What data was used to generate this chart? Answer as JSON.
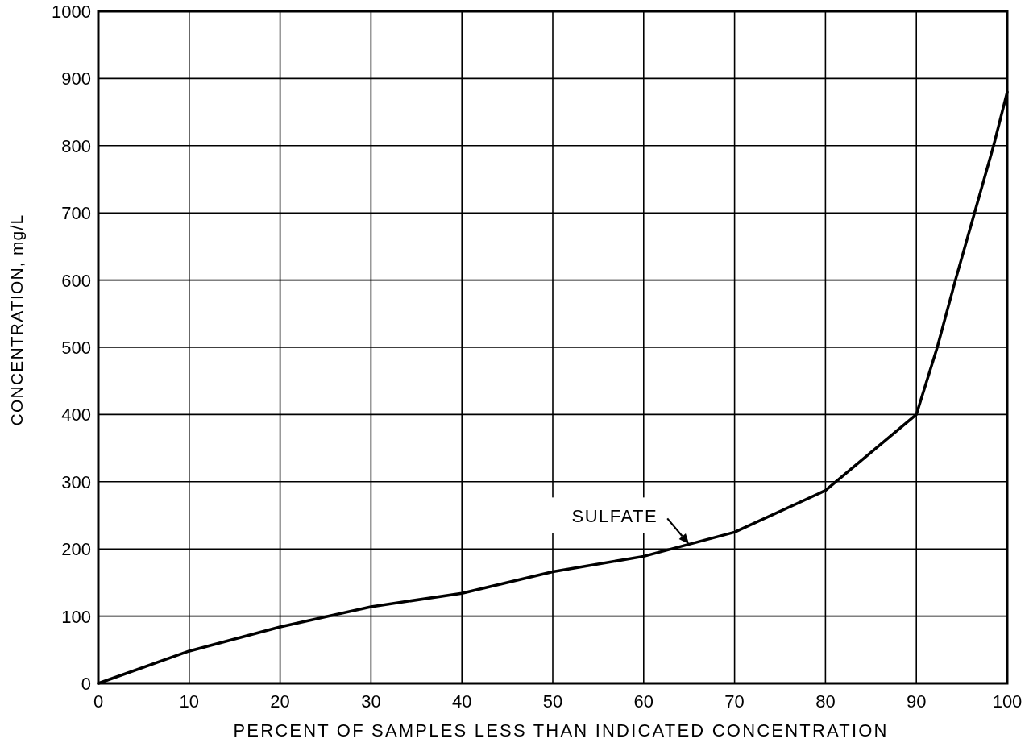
{
  "chart_data": {
    "type": "line",
    "xlabel": "PERCENT OF SAMPLES LESS THAN INDICATED CONCENTRATION",
    "ylabel": "CONCENTRATION, mg/L",
    "x": [
      0,
      10,
      20,
      30,
      40,
      50,
      60,
      70,
      80,
      90,
      92.3,
      94.3,
      96.4,
      98.5,
      100
    ],
    "series": [
      {
        "color": "#000000",
        "values": [
          0,
          48,
          84,
          114,
          134,
          166,
          189,
          225,
          287,
          400,
          500,
          600,
          700,
          800,
          880
        ]
      }
    ],
    "xlim": [
      0,
      100
    ],
    "xticks": [
      0,
      10,
      20,
      30,
      40,
      50,
      60,
      70,
      80,
      90,
      100
    ],
    "ylim": [
      0,
      1000
    ],
    "yticks": [
      0,
      100,
      200,
      300,
      400,
      500,
      600,
      700,
      800,
      900,
      1000
    ],
    "grid": true,
    "line_style": "solid",
    "annotations": [
      {
        "text": "SULFATE",
        "x": 65,
        "y": 207
      }
    ]
  }
}
